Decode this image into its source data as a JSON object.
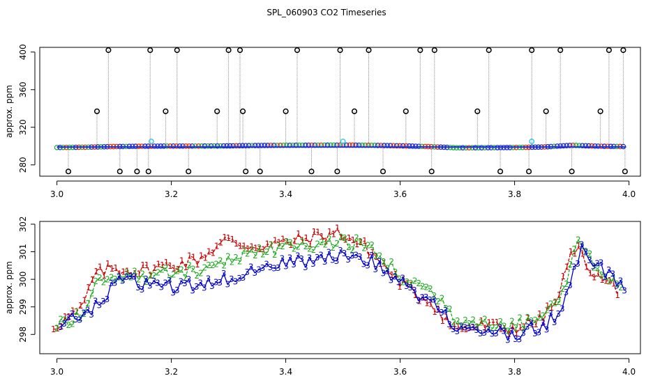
{
  "chart_data": [
    {
      "type": "scatter",
      "title": "SPL_060903  CO2 Timeseries",
      "xlabel": "",
      "ylabel": "approx. ppm",
      "xlim": [
        2.97,
        4.02
      ],
      "ylim": [
        268,
        405
      ],
      "xticks": [
        3.0,
        3.2,
        3.4,
        3.6,
        3.8,
        4.0
      ],
      "xtick_labels": [
        "3.0",
        "3.2",
        "3.4",
        "3.6",
        "3.8",
        "4.0"
      ],
      "yticks": [
        280,
        320,
        360,
        400
      ],
      "ytick_labels": [
        "280",
        "320",
        "360",
        "400"
      ],
      "baseline": {
        "x": [
          3.0,
          3.05,
          3.1,
          3.15,
          3.2,
          3.25,
          3.3,
          3.35,
          3.4,
          3.45,
          3.5,
          3.55,
          3.6,
          3.65,
          3.7,
          3.75,
          3.8,
          3.85,
          3.9,
          3.95,
          3.99
        ],
        "y": [
          298.5,
          298.8,
          299.5,
          299.8,
          300.0,
          300.0,
          300.2,
          300.6,
          300.8,
          300.9,
          301.0,
          300.8,
          300.3,
          299.4,
          298.2,
          298.3,
          298.5,
          299.0,
          300.8,
          299.8,
          299.5
        ]
      },
      "spikes": {
        "x": [
          3.02,
          3.07,
          3.09,
          3.11,
          3.14,
          3.16,
          3.163,
          3.19,
          3.21,
          3.23,
          3.28,
          3.3,
          3.32,
          3.325,
          3.33,
          3.355,
          3.4,
          3.42,
          3.445,
          3.49,
          3.495,
          3.52,
          3.545,
          3.57,
          3.61,
          3.635,
          3.655,
          3.66,
          3.735,
          3.755,
          3.775,
          3.825,
          3.83,
          3.855,
          3.88,
          3.9,
          3.95,
          3.965,
          3.99,
          3.993
        ],
        "y": [
          273,
          337,
          402,
          273,
          273,
          273,
          402,
          337,
          402,
          273,
          337,
          402,
          402,
          337,
          273,
          273,
          337,
          402,
          273,
          273,
          402,
          337,
          402,
          273,
          337,
          402,
          273,
          402,
          337,
          402,
          273,
          273,
          402,
          337,
          402,
          273,
          337,
          402,
          402,
          273
        ]
      },
      "highlights": {
        "x": [
          3.165,
          3.5,
          3.83
        ],
        "y": [
          305,
          305,
          305
        ]
      }
    },
    {
      "type": "line",
      "title": "",
      "xlabel": "",
      "ylabel": "approx. ppm",
      "xlim": [
        2.97,
        4.02
      ],
      "ylim": [
        297.3,
        302.1
      ],
      "xticks": [
        3.0,
        3.2,
        3.4,
        3.6,
        3.8,
        4.0
      ],
      "xtick_labels": [
        "3.0",
        "3.2",
        "3.4",
        "3.6",
        "3.8",
        "4.0"
      ],
      "yticks": [
        298,
        299,
        300,
        301,
        302
      ],
      "ytick_labels": [
        "298",
        "299",
        "300",
        "301",
        "302"
      ],
      "x": [
        3.0,
        3.05,
        3.07,
        3.1,
        3.15,
        3.2,
        3.25,
        3.3,
        3.35,
        3.4,
        3.45,
        3.5,
        3.55,
        3.6,
        3.63,
        3.66,
        3.7,
        3.75,
        3.8,
        3.85,
        3.88,
        3.91,
        3.95,
        3.99
      ],
      "series": [
        {
          "name": "1",
          "color": "#cc0000",
          "values": [
            298.3,
            298.9,
            300.1,
            300.4,
            300.3,
            300.5,
            300.7,
            301.4,
            301.2,
            301.3,
            301.5,
            301.7,
            301.1,
            300.0,
            299.5,
            299.2,
            298.2,
            298.3,
            298.2,
            298.5,
            299.2,
            301.2,
            300.1,
            299.6
          ]
        },
        {
          "name": "2",
          "color": "#22aa22",
          "values": [
            298.4,
            298.8,
            299.8,
            300.2,
            300.1,
            300.2,
            300.4,
            300.7,
            300.9,
            301.2,
            301.2,
            301.4,
            301.1,
            300.1,
            299.8,
            299.5,
            298.5,
            298.5,
            298.3,
            298.7,
            299.3,
            301.4,
            300.3,
            299.8
          ]
        },
        {
          "name": "3",
          "color": "#0000cc",
          "values": [
            298.5,
            298.7,
            299.2,
            299.9,
            299.8,
            299.7,
            299.8,
            300.1,
            300.4,
            300.6,
            300.7,
            300.9,
            300.6,
            299.9,
            299.4,
            299.1,
            298.1,
            298.1,
            298.0,
            298.4,
            299.0,
            301.2,
            300.3,
            299.7
          ]
        }
      ]
    }
  ]
}
